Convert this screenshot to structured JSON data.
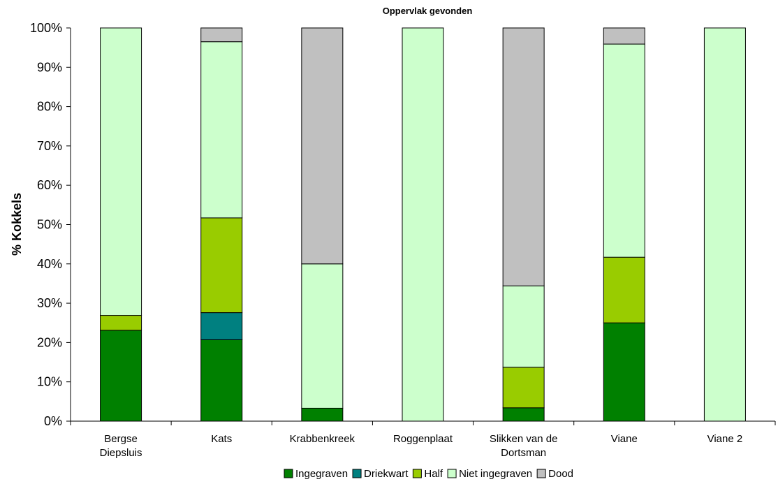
{
  "chart_data": {
    "type": "bar",
    "stacked": true,
    "percent": true,
    "title": "Oppervlak gevonden",
    "xlabel": "",
    "ylabel": "% Kokkels",
    "ylim": [
      0,
      100
    ],
    "yticks": [
      "0%",
      "10%",
      "20%",
      "30%",
      "40%",
      "50%",
      "60%",
      "70%",
      "80%",
      "90%",
      "100%"
    ],
    "grid": false,
    "legend_position": "bottom",
    "categories": [
      [
        "Bergse",
        "Diepsluis"
      ],
      [
        "Kats"
      ],
      [
        "Krabbenkreek"
      ],
      [
        "Roggenplaat"
      ],
      [
        "Slikken van de",
        "Dortsman"
      ],
      [
        "Viane"
      ],
      [
        "Viane 2"
      ]
    ],
    "series": [
      {
        "name": "Ingegraven",
        "color": "#008000",
        "values": [
          23.1,
          20.7,
          3.3,
          0,
          3.4,
          25.0,
          0
        ]
      },
      {
        "name": "Driekwart",
        "color": "#008080",
        "values": [
          0,
          6.9,
          0,
          0,
          0,
          0,
          0
        ]
      },
      {
        "name": "Half",
        "color": "#99CC00",
        "values": [
          3.8,
          24.1,
          0,
          0,
          10.3,
          16.7,
          0
        ]
      },
      {
        "name": "Niet ingegraven",
        "color": "#CCFFCC",
        "values": [
          73.1,
          44.8,
          36.7,
          100,
          20.7,
          54.2,
          100
        ]
      },
      {
        "name": "Dood",
        "color": "#C0C0C0",
        "values": [
          0,
          3.5,
          60.0,
          0,
          65.6,
          4.1,
          0
        ]
      }
    ]
  }
}
